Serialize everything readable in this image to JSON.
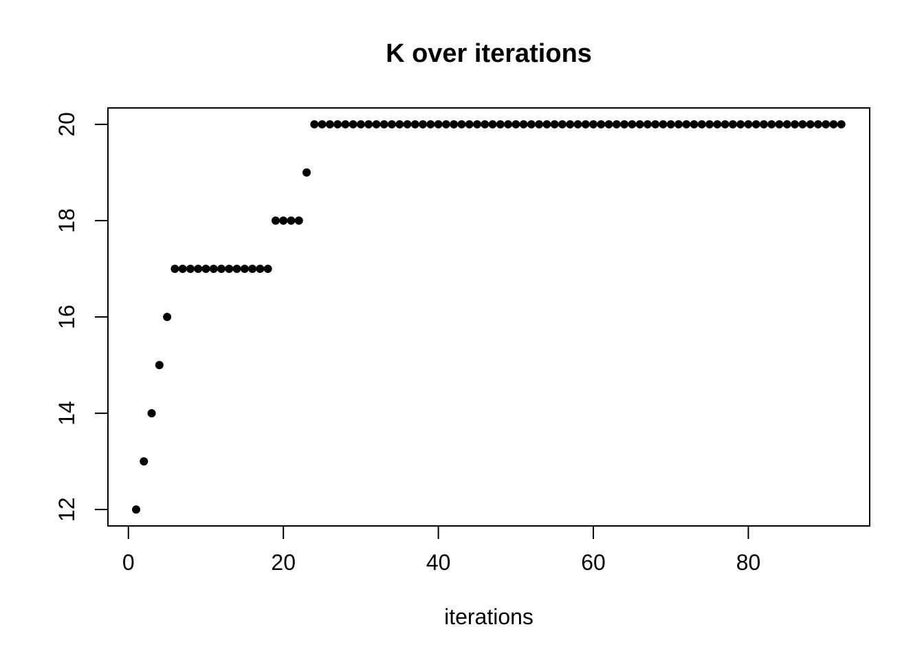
{
  "chart_data": {
    "type": "scatter",
    "title": "K over iterations",
    "xlabel": "iterations",
    "ylabel": "",
    "x": [
      1,
      2,
      3,
      4,
      5,
      6,
      7,
      8,
      9,
      10,
      11,
      12,
      13,
      14,
      15,
      16,
      17,
      18,
      19,
      20,
      21,
      22,
      23,
      24,
      25,
      26,
      27,
      28,
      29,
      30,
      31,
      32,
      33,
      34,
      35,
      36,
      37,
      38,
      39,
      40,
      41,
      42,
      43,
      44,
      45,
      46,
      47,
      48,
      49,
      50,
      51,
      52,
      53,
      54,
      55,
      56,
      57,
      58,
      59,
      60,
      61,
      62,
      63,
      64,
      65,
      66,
      67,
      68,
      69,
      70,
      71,
      72,
      73,
      74,
      75,
      76,
      77,
      78,
      79,
      80,
      81,
      82,
      83,
      84,
      85,
      86,
      87,
      88,
      89,
      90,
      91,
      92
    ],
    "y": [
      12,
      13,
      14,
      15,
      16,
      17,
      17,
      17,
      17,
      17,
      17,
      17,
      17,
      17,
      17,
      17,
      17,
      17,
      18,
      18,
      18,
      18,
      19,
      20,
      20,
      20,
      20,
      20,
      20,
      20,
      20,
      20,
      20,
      20,
      20,
      20,
      20,
      20,
      20,
      20,
      20,
      20,
      20,
      20,
      20,
      20,
      20,
      20,
      20,
      20,
      20,
      20,
      20,
      20,
      20,
      20,
      20,
      20,
      20,
      20,
      20,
      20,
      20,
      20,
      20,
      20,
      20,
      20,
      20,
      20,
      20,
      20,
      20,
      20,
      20,
      20,
      20,
      20,
      20,
      20,
      20,
      20,
      20,
      20,
      20,
      20,
      20,
      20,
      20,
      20,
      20,
      20
    ],
    "xticks": [
      0,
      20,
      40,
      60,
      80
    ],
    "yticks": [
      12,
      14,
      16,
      18,
      20
    ],
    "xlim": [
      -2.64,
      95.66
    ],
    "ylim": [
      11.66,
      20.34
    ],
    "grid": false,
    "legend": false,
    "point_style": "filled-circle",
    "point_color": "#000000",
    "axis_color": "#000000",
    "background": "#ffffff"
  }
}
